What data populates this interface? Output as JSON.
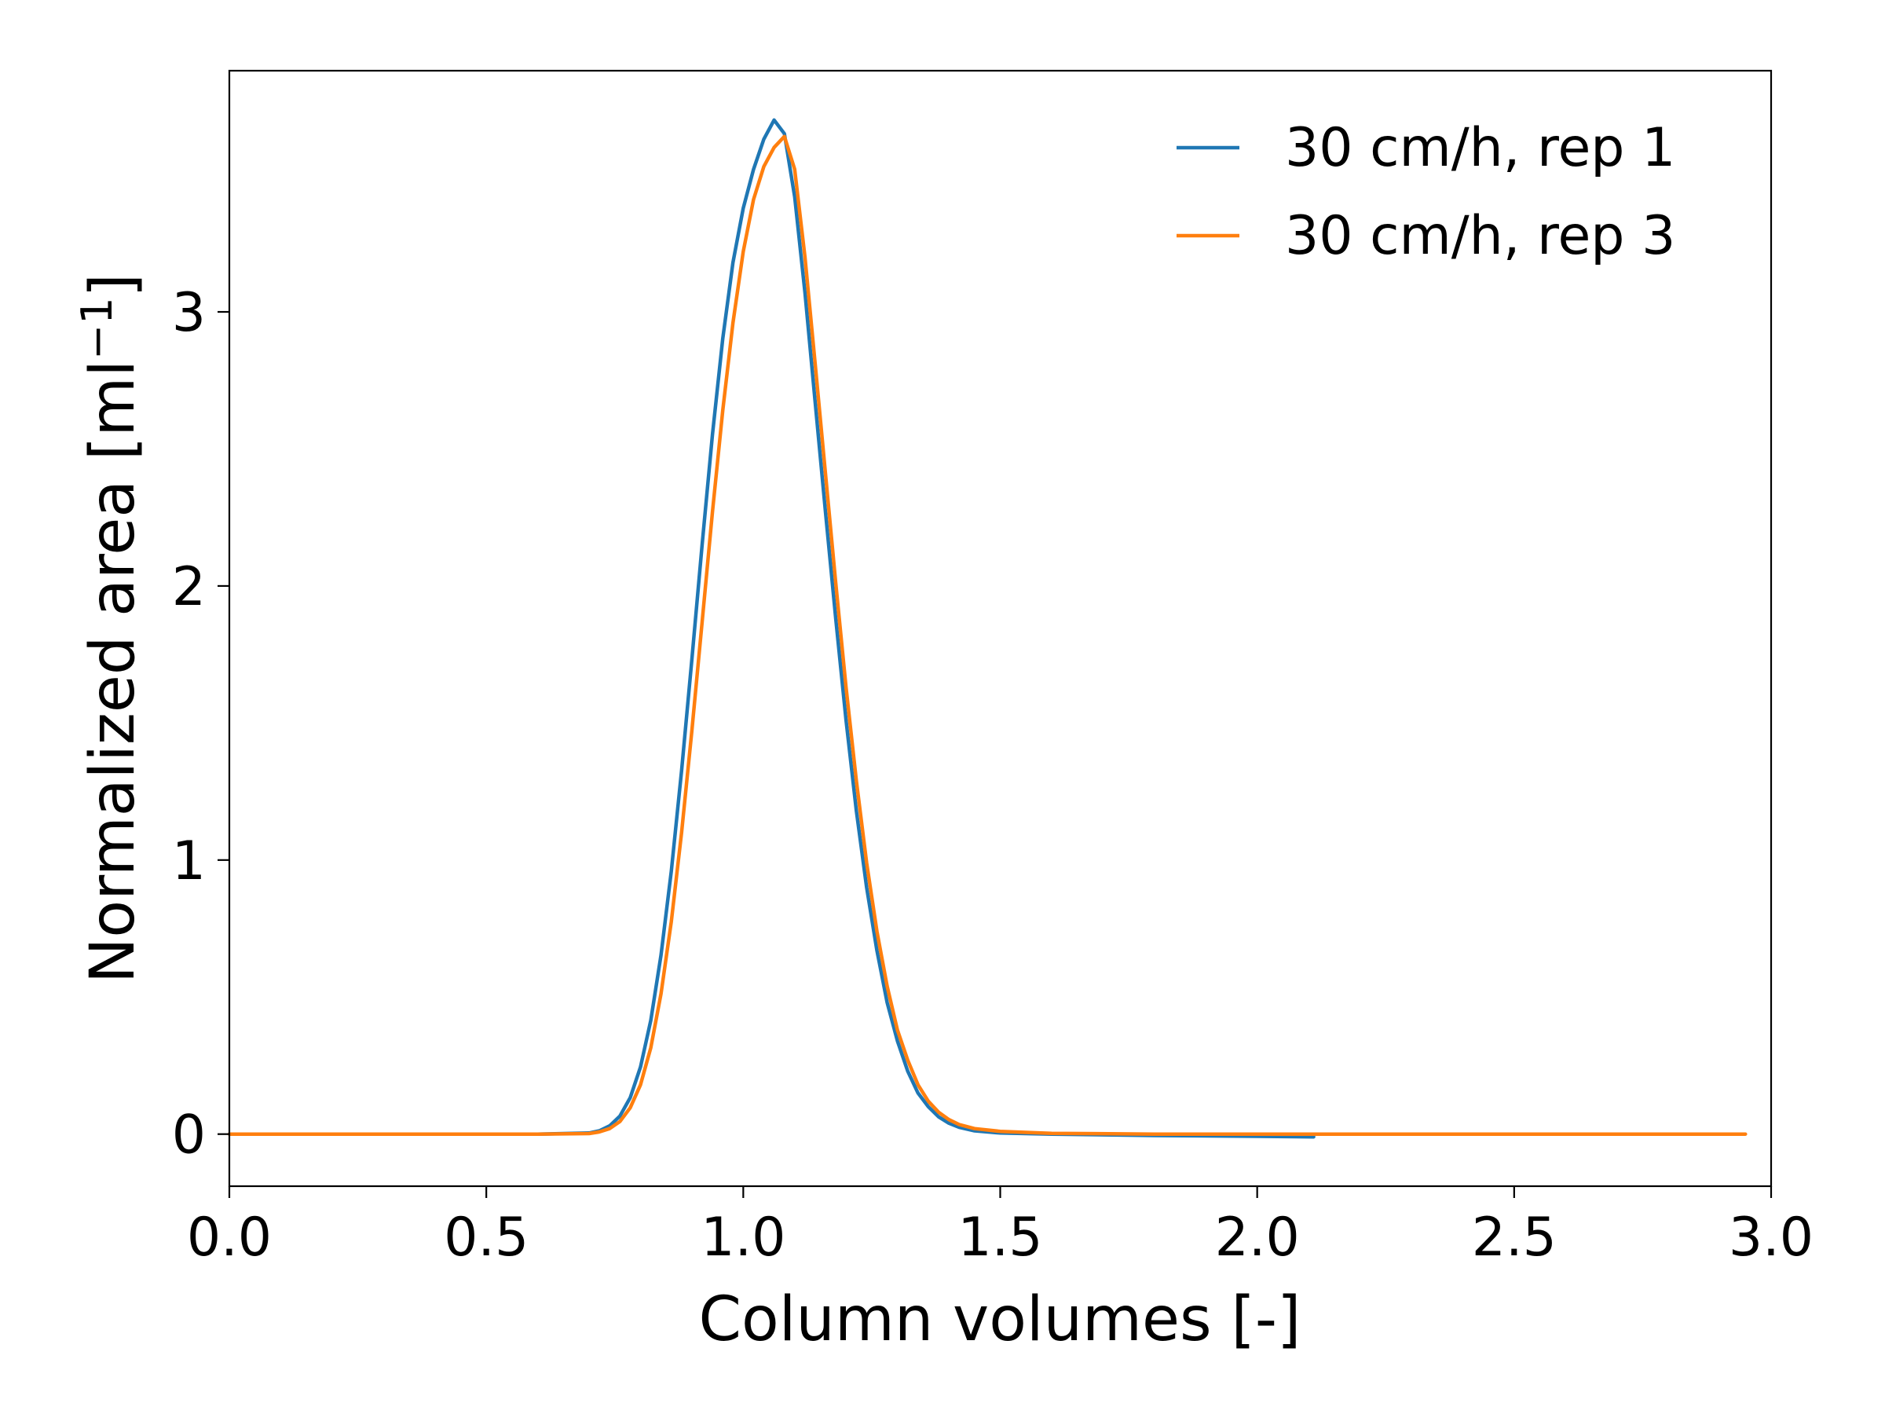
{
  "chart_data": {
    "type": "line",
    "title": "",
    "xlabel": "Column volumes [-]",
    "ylabel_main": "Normalized area [ml",
    "ylabel_sup": "−1",
    "ylabel_close": "]",
    "xlim": [
      0.0,
      3.0
    ],
    "ylim": [
      -0.19,
      3.88
    ],
    "xticks": [
      0.0,
      0.5,
      1.0,
      1.5,
      2.0,
      2.5,
      3.0
    ],
    "xtick_labels": [
      "0.0",
      "0.5",
      "1.0",
      "1.5",
      "2.0",
      "2.5",
      "3.0"
    ],
    "yticks": [
      0,
      1,
      2,
      3
    ],
    "ytick_labels": [
      "0",
      "1",
      "2",
      "3"
    ],
    "grid": false,
    "legend_position": "top-right",
    "series": [
      {
        "name": "30 cm/h, rep 1",
        "color": "#1f77b4",
        "x": [
          0.0,
          0.2,
          0.4,
          0.6,
          0.7,
          0.72,
          0.74,
          0.76,
          0.78,
          0.8,
          0.82,
          0.84,
          0.86,
          0.88,
          0.9,
          0.92,
          0.94,
          0.96,
          0.98,
          1.0,
          1.02,
          1.04,
          1.06,
          1.08,
          1.1,
          1.12,
          1.14,
          1.16,
          1.18,
          1.2,
          1.22,
          1.24,
          1.26,
          1.28,
          1.3,
          1.32,
          1.34,
          1.36,
          1.38,
          1.4,
          1.42,
          1.45,
          1.5,
          1.6,
          1.8,
          2.0,
          2.11
        ],
        "y": [
          0.0,
          0.0,
          0.0,
          0.0,
          0.004,
          0.012,
          0.03,
          0.066,
          0.133,
          0.245,
          0.415,
          0.653,
          0.959,
          1.326,
          1.732,
          2.152,
          2.552,
          2.902,
          3.18,
          3.378,
          3.52,
          3.63,
          3.7,
          3.65,
          3.42,
          3.07,
          2.67,
          2.27,
          1.88,
          1.51,
          1.18,
          0.9,
          0.67,
          0.48,
          0.34,
          0.23,
          0.15,
          0.1,
          0.063,
          0.04,
          0.025,
          0.012,
          0.004,
          0.0,
          -0.005,
          -0.008,
          -0.01
        ]
      },
      {
        "name": "30 cm/h, rep 3",
        "color": "#ff7f0e",
        "x": [
          0.0,
          0.2,
          0.4,
          0.6,
          0.7,
          0.72,
          0.74,
          0.76,
          0.78,
          0.8,
          0.82,
          0.84,
          0.86,
          0.88,
          0.9,
          0.92,
          0.94,
          0.96,
          0.98,
          1.0,
          1.02,
          1.04,
          1.06,
          1.08,
          1.1,
          1.12,
          1.14,
          1.16,
          1.18,
          1.2,
          1.22,
          1.24,
          1.26,
          1.28,
          1.3,
          1.32,
          1.34,
          1.36,
          1.38,
          1.4,
          1.42,
          1.45,
          1.5,
          1.6,
          1.8,
          2.0,
          2.5,
          2.95
        ],
        "y": [
          0.0,
          0.0,
          0.0,
          0.0,
          0.002,
          0.008,
          0.02,
          0.046,
          0.096,
          0.18,
          0.315,
          0.512,
          0.775,
          1.1,
          1.472,
          1.87,
          2.27,
          2.64,
          2.96,
          3.22,
          3.41,
          3.53,
          3.6,
          3.64,
          3.52,
          3.2,
          2.81,
          2.41,
          2.01,
          1.63,
          1.29,
          0.99,
          0.74,
          0.54,
          0.38,
          0.27,
          0.18,
          0.12,
          0.08,
          0.053,
          0.035,
          0.02,
          0.01,
          0.003,
          0.0,
          0.0,
          0.0,
          0.0
        ]
      }
    ]
  }
}
